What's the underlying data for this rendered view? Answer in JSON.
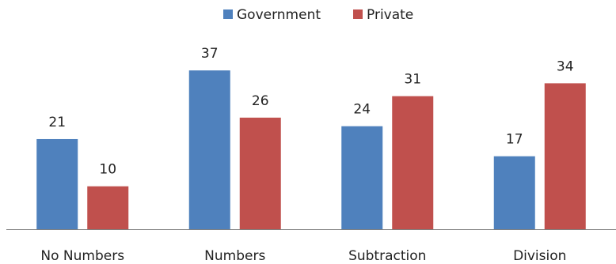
{
  "chart_data": {
    "type": "bar",
    "categories": [
      "No Numbers",
      "Numbers",
      "Subtraction",
      "Division"
    ],
    "series": [
      {
        "name": "Government",
        "values": [
          21,
          37,
          24,
          17
        ],
        "color": "#4F81BD"
      },
      {
        "name": "Private",
        "values": [
          10,
          26,
          31,
          34
        ],
        "color": "#C0504D"
      }
    ],
    "ylim": [
      0,
      40
    ],
    "grid": false,
    "legend_position": "top-center",
    "data_labels": true,
    "axis_color": "#808080"
  }
}
